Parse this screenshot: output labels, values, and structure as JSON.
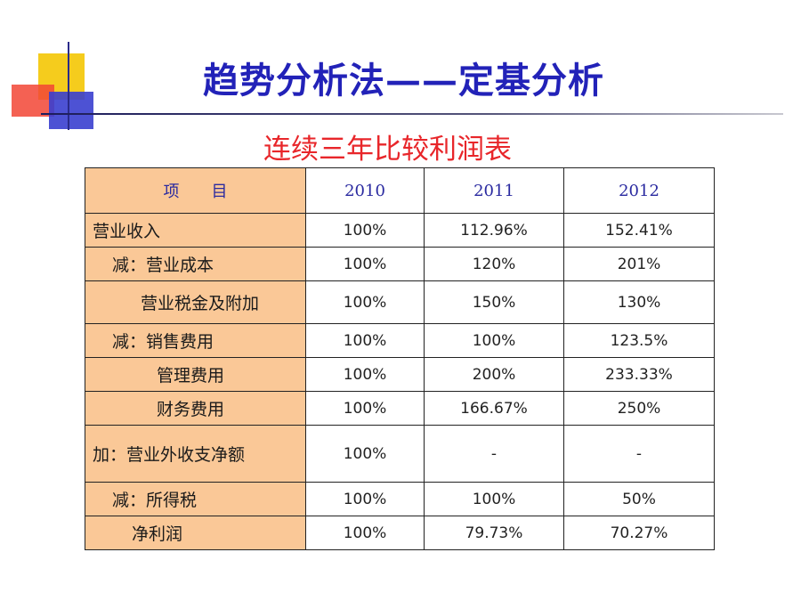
{
  "slide": {
    "title": "趋势分析法——定基分析",
    "subtitle": "连续三年比较利润表"
  },
  "table": {
    "header": {
      "item": "项　　目",
      "years": [
        "2010",
        "2011",
        "2012"
      ]
    },
    "rows": [
      {
        "label": "营业收入",
        "values": [
          "100%",
          "112.96%",
          "152.41%"
        ]
      },
      {
        "label": "减：营业成本",
        "values": [
          "100%",
          "120%",
          "201%"
        ]
      },
      {
        "label": "营业税金及附加",
        "values": [
          "100%",
          "150%",
          "130%"
        ]
      },
      {
        "label": "减：销售费用",
        "values": [
          "100%",
          "100%",
          "123.5%"
        ]
      },
      {
        "label": "管理费用",
        "values": [
          "100%",
          "200%",
          "233.33%"
        ]
      },
      {
        "label": "财务费用",
        "values": [
          "100%",
          "166.67%",
          "250%"
        ]
      },
      {
        "label": "加：营业外收支净额",
        "values": [
          "100%",
          "-",
          "-"
        ]
      },
      {
        "label": "减：所得税",
        "values": [
          "100%",
          "100%",
          "50%"
        ]
      },
      {
        "label": "净利润",
        "values": [
          "100%",
          "79.73%",
          "70.27%"
        ]
      }
    ]
  },
  "colors": {
    "title": "#2222b8",
    "subtitle": "#e8262a",
    "item_column_bg": "#fac897",
    "header_text": "#2a2aa0"
  }
}
